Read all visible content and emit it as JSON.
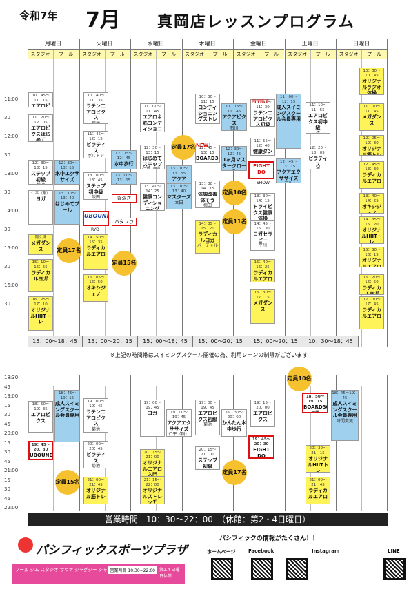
{
  "header": {
    "prefix": "令和7年",
    "month": "7月",
    "title": "真岡店レッスンプログラム"
  },
  "days": [
    "月曜日",
    "火曜日",
    "水曜日",
    "木曜日",
    "金曜日",
    "土曜日",
    "日曜日"
  ],
  "sub": {
    "studio": "スタジオ",
    "pool": "プール"
  },
  "times_top": [
    "11:00",
    "30",
    "12:00",
    "30",
    "13:00",
    "30",
    "14:00",
    "30",
    "15:00",
    "30",
    "16:00",
    "30"
  ],
  "times_bot": [
    "18:30",
    "45",
    "19:00",
    "15",
    "30",
    "45",
    "20:00",
    "15",
    "30",
    "45",
    "21:00",
    "15",
    "30",
    "45",
    "22:00"
  ],
  "pool_bars": [
    "15：00～18：45",
    "15：00～20：15",
    "15：00～18：45",
    "15：00～20：15",
    "15：00～20：15",
    "10：30～18：45"
  ],
  "note": "※上記の時間帯はスイミングスクール開催の為、利用レーンの制限がございます",
  "badges": {
    "t17a": "定員17名",
    "t15a": "定員15名",
    "t17b": "定員17名",
    "t10a": "定員10名",
    "t11": "定員11名",
    "t15b": "定員15名",
    "t17c": "定員17名",
    "t10b": "定員10名"
  },
  "top_blocks": [
    {
      "t": "10：45～11：15",
      "n": "エアロビクス入門"
    },
    {
      "t": "11：20～12：05",
      "n": "エアロビクスはじめて",
      "i": "菊池"
    },
    {
      "t": "12：30～13：15",
      "n": "ステップ初級",
      "i": "菊池"
    },
    {
      "t": "仁平（剛）",
      "n": "ヨガ"
    },
    {
      "t": "阿久津",
      "n": "メガダンス"
    },
    {
      "t": "15：10～15：55",
      "n": "ラディカルヨガ"
    },
    {
      "t": "16：25～17：10",
      "n": "オリジナルHIITトレ"
    },
    {
      "t": "10：40～11：35",
      "n": "ラテンエアロビクス",
      "i": "菊池"
    },
    {
      "t": "11：45～12：15",
      "n": "ピラティス",
      "i": "ボルドア"
    },
    {
      "t": "13：00～13：45",
      "n": "ステップ初中級",
      "i": "飯田"
    },
    {
      "t": "14：50～15：35",
      "n": "ラディカルエアロ"
    },
    {
      "t": "16：05～16：50",
      "n": "オキシジェノ"
    },
    {
      "t": "11：00～11：45",
      "n": "エアロ＆筋コンディショニング"
    },
    {
      "t": "12：30～13：15",
      "n": "はじめてステップ",
      "i": "仁平（剛）"
    },
    {
      "t": "13：40～14：25",
      "n": "健康コンディショニング",
      "i": "菅原"
    },
    {
      "t": "10：30～11：15",
      "n": "コンディショニングストレッチ",
      "i": "仁平（剛）"
    },
    {
      "t": "12：45～13：15",
      "n": "BOARD30"
    },
    {
      "t": "13：30～14：15",
      "n": "体調改善体そう",
      "i": "梅田"
    },
    {
      "t": "14：35～15：20",
      "n": "ラディカルヨガ",
      "i": "バーチャル"
    },
    {
      "t": "10：45～11：30",
      "n": "ラテンエアロビクス初級"
    },
    {
      "t": "11：55～12：40",
      "n": "健康ダンス"
    },
    {
      "t": "13：30～14：15",
      "n": "トライピクス健康体操",
      "i": "神田（剛）"
    },
    {
      "t": "14：45～15：30",
      "n": "ヨガセラピー",
      "i": "平川"
    },
    {
      "t": "15：40～16：25",
      "n": "ラディカルエアロ"
    },
    {
      "t": "16：30～17：15",
      "n": "メガダンス"
    },
    {
      "t": "11：10～11：55",
      "n": "エアロビクス初中級",
      "i": "橋"
    },
    {
      "t": "12：20～13：05",
      "n": "ピラティス",
      "i": "橋"
    },
    {
      "t": "10：30～10：45",
      "n": "オリジナルラジオ体操"
    },
    {
      "t": "11：00～11：45",
      "n": "メガダンス"
    },
    {
      "t": "12：05～12：30",
      "n": "オリジナル筋トレ"
    },
    {
      "t": "12：45～13：30",
      "n": "ラディカルエアロ"
    },
    {
      "t": "13：40～14：25",
      "n": "オキシジェノ"
    },
    {
      "t": "14：35～15：20",
      "n": "オリジナルHIITトレ"
    },
    {
      "t": "15：30～16：15",
      "n": "オリジナルエアロ入門"
    },
    {
      "t": "16：20～16：50",
      "n": "ラディカルヨガ"
    },
    {
      "t": "17：00～17：45",
      "n": "ラディカルエアロ"
    }
  ],
  "pool_blocks": [
    {
      "t": "12：30～13：15",
      "n": "水中エクササイズ"
    },
    {
      "t": "13：10～13：40",
      "n": "はじめてプール"
    },
    {
      "t": "12：15～12：45",
      "n": "水中歩行"
    },
    {
      "t": "13：00～13：15",
      "n": "クロール"
    },
    {
      "t": "13：10～13：40",
      "n": "マスターズ",
      "i": "本田"
    },
    {
      "t": "13：10～13：55",
      "n": "アクア",
      "i": "エクササイズ"
    },
    {
      "t": "11：15～11：45",
      "n": "アクアビクス",
      "i": "石川"
    },
    {
      "t": "12：30～12：45",
      "n": "1ヶ月マスタークロール"
    },
    {
      "t": "11：00～12：15",
      "n": "成人スイミングスクール会員専用"
    },
    {
      "t": "12：45～13：15",
      "n": "アクアエクササイズ",
      "i": "石川"
    }
  ],
  "labels": {
    "ubound": "UBOUND",
    "ryo": "RYO",
    "fightdo": "FIGHT DO",
    "show": "SHOW",
    "board": "BOARD30",
    "new": "NEW！",
    "swim1": "背泳ぎ",
    "swim2": "バタフライ",
    "change": "時間変更"
  },
  "bot_blocks": [
    {
      "t": "18：50～19：35",
      "n": "エアロビクス"
    },
    {
      "t": "18：45～19：15",
      "n": "成人スイミングスクール会員専用"
    },
    {
      "t": "19：45～20：30",
      "n": "UBOUND",
      "i": "RYO"
    },
    {
      "t": "19：00～19：45",
      "n": "ラテンエアロビクス",
      "i": "菊池"
    },
    {
      "t": "20：00～20：45",
      "n": "ピラティス",
      "i": "菊池"
    },
    {
      "t": "21：00～21：45",
      "n": "オリジナル筋トレ"
    },
    {
      "t": "19：00～19：45",
      "n": "ヨガ"
    },
    {
      "t": "20：15～21：00",
      "n": "オリジナルエアロ入門"
    },
    {
      "t": "21：15～22：00",
      "n": "オリジナルストレッチ"
    },
    {
      "t": "19：00～19：45",
      "n": "アクアエクササイズ",
      "i": "仁平（剛）"
    },
    {
      "t": "19：00～19：45",
      "n": "エアロビクス初級",
      "i": "菊池"
    },
    {
      "t": "20：15～21：00",
      "n": "ステップ初級",
      "i": "仁平（剛）"
    },
    {
      "t": "19：30～20：00",
      "n": "かんたん水中歩行"
    },
    {
      "t": "19：15～20：00",
      "n": "エアロビクス"
    },
    {
      "t": "19：45～20：30",
      "n": "FIGHT DO",
      "i": "SHOW"
    },
    {
      "t": "18：50～19：15",
      "n": "BOARD30",
      "i": "加藤"
    },
    {
      "t": "20：30～21：15",
      "n": "オリジナルHIITトレ"
    },
    {
      "t": "21：00～21：45",
      "n": "ラディカルエアロ"
    },
    {
      "t": "18：45～19：45",
      "n": "成人スイミングスクール会員専用",
      "i": "時間変更"
    }
  ],
  "hours": "営業時間　10：30～22：00　（休館：第2・4日曜日）",
  "brand": "パシフィックスポーツプラザ",
  "info": "パシフィックの情報がたくさん！！",
  "social": [
    "ホームページ",
    "Facebook",
    "Instagram",
    "LINE"
  ],
  "amenities": "プール ジム スタジオ サウナ ジャグジー シャワー 駐車場 Wi-Fi",
  "amen_hours": "営業時間 10:30~22:00",
  "amen_close": "第2.4 日曜日休館",
  "colors": {
    "lesson": "#fff35a",
    "pool": "#9fd0ee",
    "badge": "#f6c12e",
    "accent": "#d11"
  }
}
